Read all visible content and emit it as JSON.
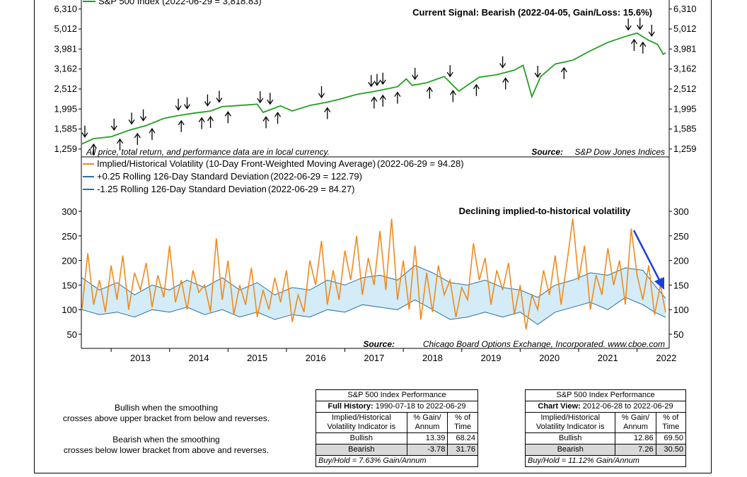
{
  "chart_data": [
    {
      "type": "line",
      "scale": "log",
      "series": [
        {
          "name": "S&P 500 Index (2022-06-29 = 3,818.83)",
          "color": "#22a022",
          "x": [
            2012.49,
            2012.7,
            2013.0,
            2013.3,
            2013.6,
            2013.9,
            2014.1,
            2014.4,
            2014.7,
            2014.9,
            2015.2,
            2015.5,
            2015.6,
            2015.9,
            2016.1,
            2016.4,
            2016.7,
            2016.9,
            2017.2,
            2017.5,
            2017.9,
            2018.05,
            2018.15,
            2018.4,
            2018.7,
            2018.95,
            2019.3,
            2019.6,
            2019.9,
            2020.05,
            2020.2,
            2020.35,
            2020.6,
            2020.9,
            2021.2,
            2021.5,
            2021.85,
            2022.0,
            2022.2,
            2022.35,
            2022.45,
            2022.49
          ],
          "y": [
            1330,
            1420,
            1450,
            1560,
            1650,
            1790,
            1840,
            1900,
            1950,
            2050,
            2080,
            2110,
            1920,
            2070,
            1950,
            2080,
            2160,
            2230,
            2360,
            2440,
            2580,
            2820,
            2620,
            2700,
            2900,
            2450,
            2880,
            2960,
            3120,
            3300,
            2300,
            2900,
            3350,
            3500,
            3900,
            4300,
            4650,
            4780,
            4400,
            4200,
            3750,
            3818.83
          ]
        }
      ],
      "yticks": [
        "6,310",
        "5,012",
        "3,981",
        "3,162",
        "2,512",
        "1,995",
        "1,585",
        "1,259"
      ],
      "ylim": [
        1150,
        7000
      ],
      "annotation": "Current Signal: Bearish (2022-04-05, Gain/Loss: 15.6%)",
      "footnote": "All price, total return, and performance data are in local currency.",
      "source_label": "Source:",
      "source_text": "S&P Dow Jones Indices",
      "signals_down": [
        2012.55,
        2013.05,
        2013.35,
        2013.55,
        2014.15,
        2014.3,
        2014.65,
        2014.85,
        2015.55,
        2015.72,
        2016.6,
        2017.45,
        2017.55,
        2017.65,
        2018.2,
        2018.8,
        2019.7,
        2020.3,
        2021.85,
        2022.05,
        2022.25
      ],
      "signals_up": [
        2012.7,
        2013.15,
        2013.45,
        2013.7,
        2014.2,
        2014.55,
        2014.7,
        2015.0,
        2015.65,
        2015.85,
        2016.7,
        2017.5,
        2017.65,
        2017.9,
        2018.45,
        2018.85,
        2019.25,
        2019.75,
        2020.75,
        2021.95,
        2022.1
      ]
    },
    {
      "type": "line",
      "series": [
        {
          "name": "Implied/Historical Volatility (10-Day Front-Weighted Moving Average)",
          "value_label": "(2022-06-29 = 94.28)",
          "color": "#f28a1d",
          "x": [
            2012.5,
            2012.6,
            2012.7,
            2012.8,
            2012.9,
            2013.0,
            2013.1,
            2013.2,
            2013.3,
            2013.4,
            2013.5,
            2013.6,
            2013.7,
            2013.8,
            2013.9,
            2014.0,
            2014.1,
            2014.2,
            2014.3,
            2014.4,
            2014.5,
            2014.6,
            2014.7,
            2014.8,
            2014.9,
            2015.0,
            2015.1,
            2015.2,
            2015.3,
            2015.4,
            2015.5,
            2015.6,
            2015.7,
            2015.8,
            2015.9,
            2016.0,
            2016.1,
            2016.2,
            2016.3,
            2016.4,
            2016.5,
            2016.6,
            2016.7,
            2016.8,
            2016.9,
            2017.0,
            2017.1,
            2017.2,
            2017.3,
            2017.4,
            2017.5,
            2017.6,
            2017.7,
            2017.8,
            2017.9,
            2018.0,
            2018.1,
            2018.2,
            2018.3,
            2018.4,
            2018.5,
            2018.6,
            2018.7,
            2018.8,
            2018.9,
            2019.0,
            2019.1,
            2019.2,
            2019.3,
            2019.4,
            2019.5,
            2019.6,
            2019.7,
            2019.8,
            2019.9,
            2020.0,
            2020.1,
            2020.2,
            2020.3,
            2020.4,
            2020.5,
            2020.6,
            2020.7,
            2020.8,
            2020.9,
            2021.0,
            2021.1,
            2021.2,
            2021.3,
            2021.4,
            2021.5,
            2021.6,
            2021.7,
            2021.8,
            2021.9,
            2022.0,
            2022.1,
            2022.2,
            2022.3,
            2022.4,
            2022.49
          ],
          "y": [
            100,
            215,
            110,
            160,
            95,
            190,
            120,
            210,
            100,
            175,
            140,
            195,
            105,
            170,
            125,
            230,
            115,
            160,
            100,
            180,
            135,
            150,
            95,
            245,
            120,
            200,
            90,
            150,
            110,
            185,
            85,
            140,
            100,
            165,
            115,
            180,
            75,
            130,
            95,
            200,
            150,
            240,
            110,
            180,
            120,
            220,
            160,
            250,
            130,
            205,
            150,
            260,
            140,
            285,
            120,
            200,
            100,
            230,
            80,
            175,
            95,
            190,
            130,
            160,
            85,
            145,
            120,
            235,
            160,
            205,
            110,
            180,
            140,
            195,
            90,
            150,
            60,
            130,
            100,
            180,
            130,
            210,
            110,
            195,
            285,
            160,
            230,
            100,
            170,
            130,
            225,
            150,
            200,
            110,
            265,
            170,
            120,
            190,
            90,
            150,
            94.28
          ]
        },
        {
          "name": "+0.25 Rolling 126-Day Standard Deviation",
          "value_label": "(2022-06-29 = 122.79)",
          "color": "#2a6fa0",
          "x": [
            2012.5,
            2012.8,
            2013.1,
            2013.4,
            2013.7,
            2014.0,
            2014.3,
            2014.6,
            2014.9,
            2015.2,
            2015.5,
            2015.8,
            2016.1,
            2016.4,
            2016.7,
            2017.0,
            2017.3,
            2017.6,
            2017.9,
            2018.2,
            2018.5,
            2018.8,
            2019.1,
            2019.4,
            2019.7,
            2020.0,
            2020.3,
            2020.6,
            2020.9,
            2021.2,
            2021.5,
            2021.8,
            2022.1,
            2022.3,
            2022.49
          ],
          "y": [
            165,
            140,
            155,
            130,
            150,
            140,
            160,
            145,
            165,
            140,
            155,
            130,
            145,
            140,
            160,
            150,
            165,
            170,
            160,
            190,
            175,
            155,
            150,
            160,
            145,
            140,
            125,
            150,
            160,
            175,
            170,
            185,
            180,
            150,
            122.79
          ]
        },
        {
          "name": "-1.25 Rolling 126-Day Standard Deviation",
          "value_label": "(2022-06-29 = 84.27)",
          "color": "#2a6fa0",
          "x": [
            2012.5,
            2012.8,
            2013.1,
            2013.4,
            2013.7,
            2014.0,
            2014.3,
            2014.6,
            2014.9,
            2015.2,
            2015.5,
            2015.8,
            2016.1,
            2016.4,
            2016.7,
            2017.0,
            2017.3,
            2017.6,
            2017.9,
            2018.2,
            2018.5,
            2018.8,
            2019.1,
            2019.4,
            2019.7,
            2020.0,
            2020.3,
            2020.6,
            2020.9,
            2021.2,
            2021.5,
            2021.8,
            2022.1,
            2022.3,
            2022.49
          ],
          "y": [
            100,
            90,
            95,
            85,
            100,
            95,
            105,
            90,
            100,
            85,
            95,
            80,
            90,
            85,
            100,
            95,
            110,
            105,
            100,
            120,
            100,
            80,
            85,
            95,
            85,
            95,
            70,
            95,
            105,
            115,
            100,
            125,
            110,
            95,
            84.27
          ]
        }
      ],
      "yticks": [
        "300",
        "250",
        "200",
        "150",
        "100",
        "50"
      ],
      "ylim": [
        40,
        305
      ],
      "annotation": "Declining implied-to-historical volatility",
      "source_label": "Source:",
      "source_text": "Chicago Board Options Exchange, Incorporated. www.cboe.com",
      "xticks": [
        "2013",
        "2014",
        "2015",
        "2016",
        "2017",
        "2018",
        "2019",
        "2020",
        "2021",
        "2022"
      ]
    }
  ],
  "notes": {
    "bullish": [
      "Bullish when the smoothing",
      "crosses above upper bracket from below and reverses."
    ],
    "bearish": [
      "Bearish when the smoothing",
      "crosses below lower bracket from above and reverses."
    ]
  },
  "tables": [
    {
      "title": "S&P 500 Index Performance",
      "sub_label": "Full History:",
      "sub_range": "1990-07-18 to 2022-06-29",
      "header": [
        "Implied/Historical Volatility Indicator is",
        "% Gain/ Annum",
        "% of Time"
      ],
      "rows": [
        [
          "Bullish",
          "13.39",
          "68.24"
        ],
        [
          "Bearish",
          "-3.78",
          "31.76"
        ]
      ],
      "footer": "Buy/Hold = 7.63% Gain/Annum"
    },
    {
      "title": "S&P 500 Index Performance",
      "sub_label": "Chart View:",
      "sub_range": "2012-06-28 to 2022-06-29",
      "header": [
        "Implied/Historical Volatility Indicator is",
        "% Gain/ Annum",
        "% of Time"
      ],
      "rows": [
        [
          "Bullish",
          "12.86",
          "69.50"
        ],
        [
          "Bearish",
          "7.26",
          "30.50"
        ]
      ],
      "footer": "Buy/Hold = 11.12% Gain/Annum"
    }
  ]
}
